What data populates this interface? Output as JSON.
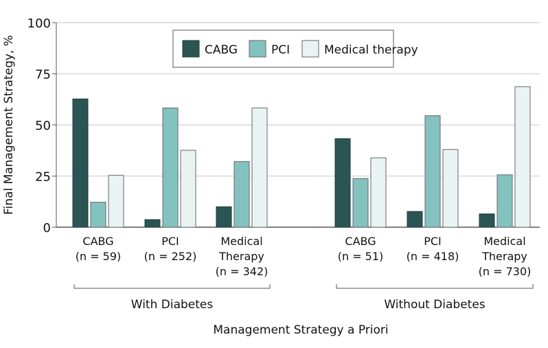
{
  "chart_data": {
    "type": "bar",
    "title": "",
    "ylabel": "Final Management Strategy, %",
    "xlabel": "Management Strategy a Priori",
    "ylim": [
      0,
      100
    ],
    "yticks": [
      "0",
      "25",
      "50",
      "75",
      "100"
    ],
    "grid": true,
    "legend_position": "top-center",
    "colors": {
      "CABG": "#2b5553",
      "PCI": "#84c2c0",
      "Medical therapy": "#e9f3f4"
    },
    "groups": [
      {
        "label": "With Diabetes",
        "categories": [
          {
            "name": "CABG",
            "n": "(n = 59)"
          },
          {
            "name": "PCI",
            "n": "(n = 252)"
          },
          {
            "name": "Medical Therapy",
            "n": "(n = 342)"
          }
        ]
      },
      {
        "label": "Without Diabetes",
        "categories": [
          {
            "name": "CABG",
            "n": "(n = 51)"
          },
          {
            "name": "PCI",
            "n": "(n = 418)"
          },
          {
            "name": "Medical Therapy",
            "n": "(n = 730)"
          }
        ]
      }
    ],
    "series": [
      {
        "name": "CABG",
        "values": [
          62.7,
          3.7,
          10.0,
          43.3,
          7.7,
          6.5
        ]
      },
      {
        "name": "PCI",
        "values": [
          12.2,
          58.3,
          32.1,
          23.8,
          54.5,
          25.6
        ]
      },
      {
        "name": "Medical therapy",
        "values": [
          25.4,
          37.6,
          58.3,
          33.9,
          38.0,
          68.7
        ]
      }
    ]
  }
}
